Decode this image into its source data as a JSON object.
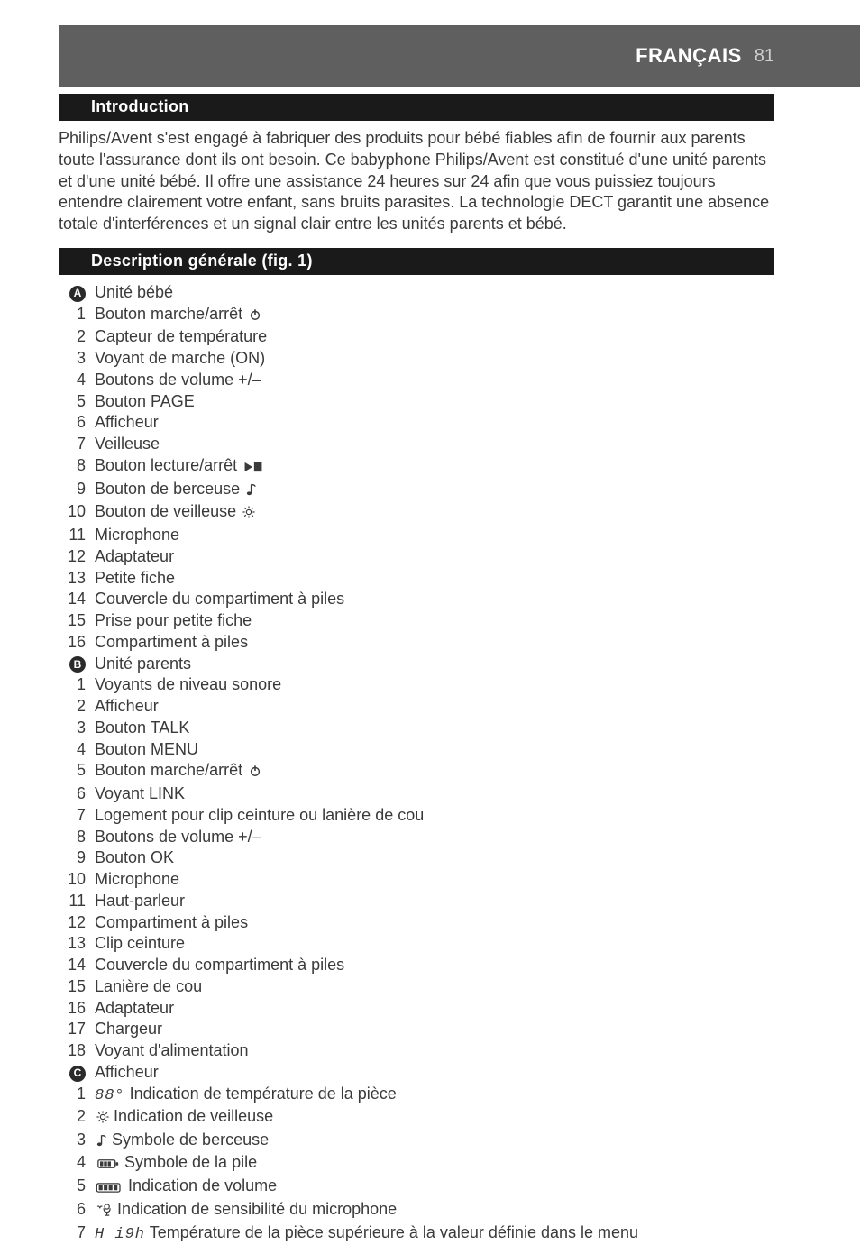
{
  "header": {
    "language": "FRANÇAIS",
    "page_number": "81"
  },
  "colors": {
    "header_band": "#5f5f5f",
    "section_bar": "#1a1a1a",
    "text": "#3a3a3a",
    "white": "#ffffff",
    "page_num": "#d0d0d0"
  },
  "sections": {
    "intro": {
      "title": "Introduction",
      "paragraph": "Philips/Avent s'est engagé à fabriquer des produits pour bébé fiables afin de fournir aux parents toute l'assurance dont ils ont besoin. Ce babyphone Philips/Avent est constitué d'une unité parents et d'une unité bébé. Il offre une assistance 24 heures sur 24 afin que vous puissiez toujours entendre clairement votre enfant, sans bruits parasites. La technologie DECT garantit une absence totale d'interférences et un signal clair entre les unités parents et bébé."
    },
    "desc": {
      "title": "Description générale (fig. 1)",
      "groups": [
        {
          "letter": "A",
          "heading": "Unité bébé",
          "items": [
            {
              "n": "1",
              "label": "Bouton marche/arrêt ",
              "icon": "power"
            },
            {
              "n": "2",
              "label": "Capteur de température"
            },
            {
              "n": "3",
              "label": "Voyant de marche (ON)"
            },
            {
              "n": "4",
              "label": "Boutons de volume +/–"
            },
            {
              "n": "5",
              "label": "Bouton PAGE"
            },
            {
              "n": "6",
              "label": "Afficheur"
            },
            {
              "n": "7",
              "label": "Veilleuse"
            },
            {
              "n": "8",
              "label": "Bouton lecture/arrêt ",
              "icon": "playstop"
            },
            {
              "n": "9",
              "label": "Bouton de berceuse ",
              "icon": "note"
            },
            {
              "n": "10",
              "label": "Bouton de veilleuse ",
              "icon": "nightlight"
            },
            {
              "n": "11",
              "label": "Microphone"
            },
            {
              "n": "12",
              "label": "Adaptateur"
            },
            {
              "n": "13",
              "label": "Petite fiche"
            },
            {
              "n": "14",
              "label": "Couvercle du compartiment à piles"
            },
            {
              "n": "15",
              "label": "Prise pour petite fiche"
            },
            {
              "n": "16",
              "label": "Compartiment à piles"
            }
          ]
        },
        {
          "letter": "B",
          "heading": "Unité parents",
          "items": [
            {
              "n": "1",
              "label": "Voyants de niveau sonore"
            },
            {
              "n": "2",
              "label": "Afficheur"
            },
            {
              "n": "3",
              "label": "Bouton TALK"
            },
            {
              "n": "4",
              "label": "Bouton MENU"
            },
            {
              "n": "5",
              "label": "Bouton marche/arrêt ",
              "icon": "power"
            },
            {
              "n": "6",
              "label": "Voyant LINK"
            },
            {
              "n": "7",
              "label": "Logement pour clip ceinture ou lanière de cou"
            },
            {
              "n": "8",
              "label": "Boutons de volume +/–"
            },
            {
              "n": "9",
              "label": "Bouton OK"
            },
            {
              "n": "10",
              "label": "Microphone"
            },
            {
              "n": "11",
              "label": "Haut-parleur"
            },
            {
              "n": "12",
              "label": "Compartiment à piles"
            },
            {
              "n": "13",
              "label": "Clip ceinture"
            },
            {
              "n": "14",
              "label": "Couvercle du compartiment à piles"
            },
            {
              "n": "15",
              "label": "Lanière de cou"
            },
            {
              "n": "16",
              "label": "Adaptateur"
            },
            {
              "n": "17",
              "label": "Chargeur"
            },
            {
              "n": "18",
              "label": "Voyant d'alimentation"
            }
          ]
        },
        {
          "letter": "C",
          "heading": "Afficheur",
          "items": [
            {
              "n": "1",
              "icon_leading": "temp88",
              "label": " Indication de température de la pièce"
            },
            {
              "n": "2",
              "icon_leading": "nightlight",
              "label": " Indication de veilleuse"
            },
            {
              "n": "3",
              "icon_leading": "note",
              "label": " Symbole de berceuse"
            },
            {
              "n": "4",
              "icon_leading": "battery",
              "label": " Symbole de la pile"
            },
            {
              "n": "5",
              "icon_leading": "volume",
              "label": " Indication de volume"
            },
            {
              "n": "6",
              "icon_leading": "mic",
              "label": " Indication de sensibilité du microphone"
            },
            {
              "n": "7",
              "icon_leading": "high",
              "label": " Température de la pièce supérieure à la valeur définie dans le menu"
            }
          ]
        }
      ]
    }
  }
}
